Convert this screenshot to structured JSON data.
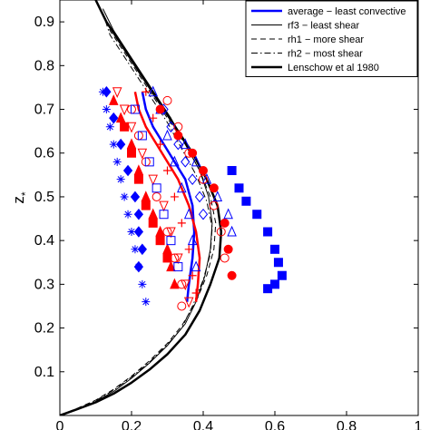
{
  "chart_data": {
    "type": "scatter",
    "title": "",
    "xlabel": "",
    "ylabel": "z",
    "ylabel_subscript": "*",
    "xlim": [
      0,
      1
    ],
    "ylim": [
      0,
      0.95
    ],
    "x_ticks": [
      0,
      0.2,
      0.4,
      0.6,
      0.8,
      1
    ],
    "x_tick_labels": [
      "0",
      "0.2",
      "0.4",
      "0.6",
      "0.8",
      "1"
    ],
    "y_ticks": [
      0.1,
      0.2,
      0.3,
      0.4,
      0.5,
      0.6,
      0.7,
      0.8,
      0.9
    ],
    "y_tick_labels": [
      "0.1",
      "0.2",
      "0.3",
      "0.4",
      "0.5",
      "0.6",
      "0.7",
      "0.8",
      "0.9"
    ],
    "grid": false,
    "legend_position": "top-right",
    "legend": [
      {
        "label": "average − least convective",
        "color": "#0000ff",
        "style": "solid",
        "width": 2.5
      },
      {
        "label": "rf3 − least shear",
        "color": "#000000",
        "style": "solid",
        "width": 1
      },
      {
        "label": "rh1 − more shear",
        "color": "#000000",
        "style": "dashed",
        "width": 1
      },
      {
        "label": "rh2 − most shear",
        "color": "#000000",
        "style": "dashdot",
        "width": 1
      },
      {
        "label": "Lenschow et al 1980",
        "color": "#000000",
        "style": "solid",
        "width": 2.5
      }
    ],
    "lines": [
      {
        "id": "lenschow",
        "color": "#000000",
        "style": "solid",
        "width": 2.5,
        "x": [
          0.0,
          0.05,
          0.1,
          0.15,
          0.2,
          0.25,
          0.3,
          0.35,
          0.39,
          0.42,
          0.445,
          0.45,
          0.44,
          0.41,
          0.37,
          0.33,
          0.29,
          0.25,
          0.21,
          0.17,
          0.13,
          0.1
        ],
        "y": [
          0.0,
          0.015,
          0.03,
          0.05,
          0.075,
          0.105,
          0.14,
          0.185,
          0.24,
          0.3,
          0.36,
          0.42,
          0.48,
          0.54,
          0.6,
          0.65,
          0.7,
          0.75,
          0.8,
          0.85,
          0.9,
          0.95
        ]
      },
      {
        "id": "rf3",
        "color": "#000000",
        "style": "solid",
        "width": 1,
        "x": [
          0.0,
          0.05,
          0.1,
          0.15,
          0.2,
          0.25,
          0.3,
          0.35,
          0.38,
          0.405,
          0.42,
          0.425,
          0.415,
          0.39,
          0.35,
          0.31,
          0.27,
          0.23,
          0.19,
          0.15,
          0.12
        ],
        "y": [
          0.0,
          0.015,
          0.032,
          0.055,
          0.085,
          0.12,
          0.16,
          0.21,
          0.26,
          0.32,
          0.38,
          0.44,
          0.5,
          0.56,
          0.62,
          0.68,
          0.73,
          0.78,
          0.83,
          0.88,
          0.93
        ]
      },
      {
        "id": "rh1",
        "color": "#000000",
        "style": "dashed",
        "width": 1,
        "x": [
          0.0,
          0.05,
          0.1,
          0.15,
          0.2,
          0.25,
          0.3,
          0.34,
          0.38,
          0.41,
          0.43,
          0.435,
          0.42,
          0.39,
          0.35,
          0.3,
          0.26,
          0.22,
          0.18,
          0.14,
          0.12
        ],
        "y": [
          0.0,
          0.017,
          0.035,
          0.06,
          0.09,
          0.125,
          0.165,
          0.205,
          0.26,
          0.32,
          0.38,
          0.44,
          0.5,
          0.56,
          0.62,
          0.68,
          0.73,
          0.78,
          0.83,
          0.88,
          0.92
        ]
      },
      {
        "id": "rh2",
        "color": "#000000",
        "style": "dashdot",
        "width": 1,
        "x": [
          0.0,
          0.05,
          0.1,
          0.15,
          0.2,
          0.25,
          0.3,
          0.34,
          0.37,
          0.4,
          0.42,
          0.425,
          0.41,
          0.38,
          0.34,
          0.3,
          0.26,
          0.22,
          0.18,
          0.14,
          0.12
        ],
        "y": [
          0.0,
          0.016,
          0.034,
          0.058,
          0.088,
          0.122,
          0.162,
          0.2,
          0.25,
          0.31,
          0.37,
          0.43,
          0.49,
          0.55,
          0.61,
          0.67,
          0.72,
          0.77,
          0.82,
          0.87,
          0.92
        ]
      },
      {
        "id": "average-blue",
        "color": "#0000ff",
        "style": "solid",
        "width": 2.5,
        "x": [
          0.23,
          0.24,
          0.26,
          0.29,
          0.32,
          0.35,
          0.37,
          0.375,
          0.37,
          0.36,
          0.355
        ],
        "y": [
          0.74,
          0.7,
          0.66,
          0.62,
          0.58,
          0.54,
          0.48,
          0.42,
          0.36,
          0.3,
          0.26
        ]
      },
      {
        "id": "average-red",
        "color": "#ff0000",
        "style": "solid",
        "width": 2.5,
        "x": [
          0.21,
          0.22,
          0.24,
          0.27,
          0.3,
          0.33,
          0.36,
          0.38,
          0.39,
          0.385,
          0.38
        ],
        "y": [
          0.74,
          0.7,
          0.66,
          0.62,
          0.58,
          0.54,
          0.48,
          0.42,
          0.36,
          0.3,
          0.26
        ]
      }
    ],
    "series": [
      {
        "marker": "asterisk",
        "color": "#0000ff",
        "filled": true,
        "x": [
          0.12,
          0.13,
          0.14,
          0.15,
          0.16,
          0.17,
          0.18,
          0.19,
          0.2,
          0.21,
          0.22,
          0.23,
          0.24
        ],
        "y": [
          0.74,
          0.7,
          0.66,
          0.62,
          0.58,
          0.54,
          0.5,
          0.46,
          0.42,
          0.38,
          0.34,
          0.3,
          0.26
        ]
      },
      {
        "marker": "diamond",
        "color": "#0000ff",
        "filled": true,
        "x": [
          0.13,
          0.15,
          0.17,
          0.19,
          0.21,
          0.22,
          0.22,
          0.23,
          0.22
        ],
        "y": [
          0.74,
          0.68,
          0.62,
          0.56,
          0.5,
          0.46,
          0.42,
          0.38,
          0.34
        ]
      },
      {
        "marker": "triangle-up",
        "color": "#ff0000",
        "filled": true,
        "x": [
          0.15,
          0.17,
          0.2,
          0.22,
          0.24,
          0.26,
          0.28,
          0.3,
          0.31,
          0.32
        ],
        "y": [
          0.72,
          0.68,
          0.62,
          0.56,
          0.5,
          0.46,
          0.42,
          0.38,
          0.34,
          0.3
        ]
      },
      {
        "marker": "square",
        "color": "#ff0000",
        "filled": true,
        "x": [
          0.18,
          0.2,
          0.22,
          0.24,
          0.26,
          0.28,
          0.3
        ],
        "y": [
          0.66,
          0.6,
          0.54,
          0.48,
          0.44,
          0.4,
          0.36
        ]
      },
      {
        "marker": "triangle-down",
        "color": "#ff0000",
        "filled": false,
        "x": [
          0.16,
          0.18,
          0.2,
          0.23,
          0.26,
          0.29,
          0.31,
          0.33,
          0.35,
          0.36
        ],
        "y": [
          0.74,
          0.7,
          0.66,
          0.6,
          0.54,
          0.48,
          0.42,
          0.36,
          0.3,
          0.26
        ]
      },
      {
        "marker": "circle",
        "color": "#ff0000",
        "filled": false,
        "x": [
          0.2,
          0.22,
          0.24,
          0.27,
          0.3,
          0.32,
          0.34,
          0.34
        ],
        "y": [
          0.7,
          0.64,
          0.58,
          0.5,
          0.42,
          0.36,
          0.3,
          0.25
        ]
      },
      {
        "marker": "square",
        "color": "#0000ff",
        "filled": false,
        "x": [
          0.21,
          0.23,
          0.25,
          0.27,
          0.29,
          0.31,
          0.33
        ],
        "y": [
          0.7,
          0.64,
          0.58,
          0.52,
          0.46,
          0.4,
          0.34
        ]
      },
      {
        "marker": "plus",
        "color": "#ff0000",
        "filled": true,
        "x": [
          0.24,
          0.26,
          0.28,
          0.3,
          0.32,
          0.34,
          0.36,
          0.37,
          0.38
        ],
        "y": [
          0.74,
          0.68,
          0.62,
          0.56,
          0.5,
          0.44,
          0.38,
          0.32,
          0.28
        ]
      },
      {
        "marker": "triangle-up",
        "color": "#0000ff",
        "filled": false,
        "x": [
          0.26,
          0.28,
          0.3,
          0.32,
          0.34,
          0.36,
          0.37,
          0.38
        ],
        "y": [
          0.74,
          0.7,
          0.64,
          0.58,
          0.52,
          0.46,
          0.4,
          0.34
        ]
      },
      {
        "marker": "diamond",
        "color": "#0000ff",
        "filled": false,
        "x": [
          0.29,
          0.31,
          0.33,
          0.35,
          0.37,
          0.39,
          0.4
        ],
        "y": [
          0.7,
          0.66,
          0.62,
          0.58,
          0.54,
          0.5,
          0.46
        ]
      },
      {
        "marker": "circle",
        "color": "#ff0000",
        "filled": true,
        "x": [
          0.28,
          0.33,
          0.37,
          0.4,
          0.43,
          0.46,
          0.47,
          0.48
        ],
        "y": [
          0.7,
          0.64,
          0.6,
          0.56,
          0.52,
          0.44,
          0.38,
          0.32
        ]
      },
      {
        "marker": "triangle-up",
        "color": "#0000ff",
        "filled": false,
        "x": [
          0.35,
          0.38,
          0.41,
          0.44,
          0.47,
          0.48
        ],
        "y": [
          0.62,
          0.58,
          0.54,
          0.5,
          0.46,
          0.42
        ]
      },
      {
        "marker": "circle",
        "color": "#ff0000",
        "filled": false,
        "x": [
          0.3,
          0.33,
          0.36,
          0.4,
          0.43,
          0.45,
          0.46
        ],
        "y": [
          0.72,
          0.66,
          0.6,
          0.54,
          0.48,
          0.42,
          0.36
        ]
      },
      {
        "marker": "square",
        "color": "#0000ff",
        "filled": true,
        "x": [
          0.48,
          0.5,
          0.52,
          0.55,
          0.58,
          0.6,
          0.61,
          0.62,
          0.6,
          0.58
        ],
        "y": [
          0.56,
          0.52,
          0.49,
          0.46,
          0.42,
          0.38,
          0.35,
          0.32,
          0.3,
          0.29
        ]
      }
    ]
  }
}
